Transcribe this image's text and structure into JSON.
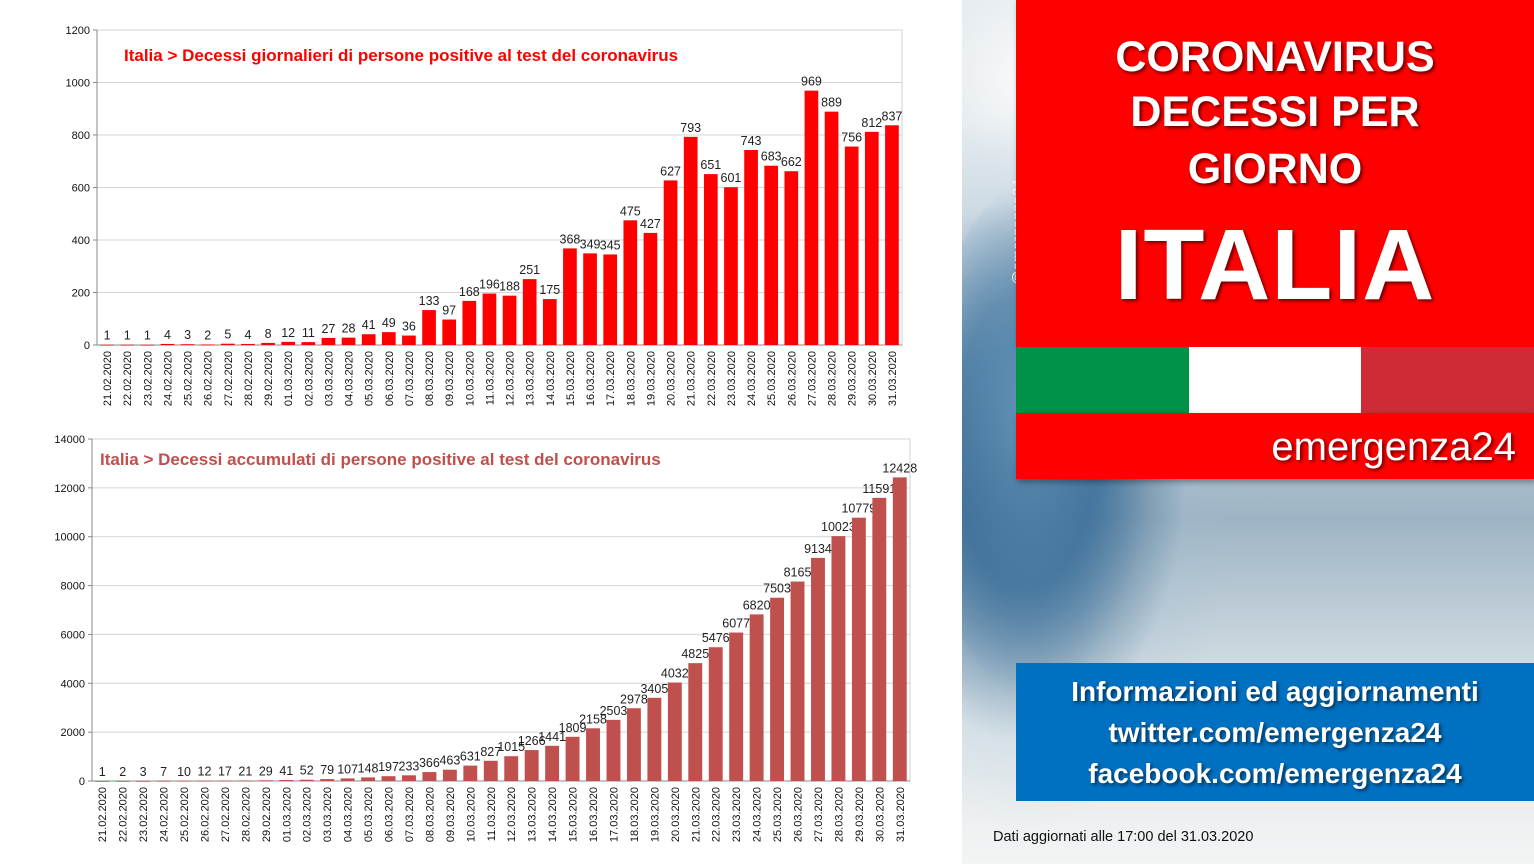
{
  "chart_data": [
    {
      "type": "bar",
      "title": "Italia > Decessi giornalieri di persone positive al test del coronavirus",
      "categories": [
        "21.02.2020",
        "22.02.2020",
        "23.02.2020",
        "24.02.2020",
        "25.02.2020",
        "26.02.2020",
        "27.02.2020",
        "28.02.2020",
        "29.02.2020",
        "01.03.2020",
        "02.03.2020",
        "03.03.2020",
        "04.03.2020",
        "05.03.2020",
        "06.03.2020",
        "07.03.2020",
        "08.03.2020",
        "09.03.2020",
        "10.03.2020",
        "11.03.2020",
        "12.03.2020",
        "13.03.2020",
        "14.03.2020",
        "15.03.2020",
        "16.03.2020",
        "17.03.2020",
        "18.03.2020",
        "19.03.2020",
        "20.03.2020",
        "21.03.2020",
        "22.03.2020",
        "23.03.2020",
        "24.03.2020",
        "25.03.2020",
        "26.03.2020",
        "27.03.2020",
        "28.03.2020",
        "29.03.2020",
        "30.03.2020",
        "31.03.2020"
      ],
      "values": [
        1,
        1,
        1,
        4,
        3,
        2,
        5,
        4,
        8,
        12,
        11,
        27,
        28,
        41,
        49,
        36,
        133,
        97,
        168,
        196,
        188,
        251,
        175,
        368,
        349,
        345,
        475,
        427,
        627,
        793,
        651,
        601,
        743,
        683,
        662,
        969,
        889,
        756,
        812,
        837
      ],
      "ylim": [
        0,
        1200
      ],
      "yticks": [
        0,
        200,
        400,
        600,
        800,
        1000,
        1200
      ],
      "color": "#fe0000",
      "title_color": "#fe0000",
      "grid": true
    },
    {
      "type": "bar",
      "title": "Italia > Decessi accumulati di persone positive al test del coronavirus",
      "categories": [
        "21.02.2020",
        "22.02.2020",
        "23.02.2020",
        "24.02.2020",
        "25.02.2020",
        "26.02.2020",
        "27.02.2020",
        "28.02.2020",
        "29.02.2020",
        "01.03.2020",
        "02.03.2020",
        "03.03.2020",
        "04.03.2020",
        "05.03.2020",
        "06.03.2020",
        "07.03.2020",
        "08.03.2020",
        "09.03.2020",
        "10.03.2020",
        "11.03.2020",
        "12.03.2020",
        "13.03.2020",
        "14.03.2020",
        "15.03.2020",
        "16.03.2020",
        "17.03.2020",
        "18.03.2020",
        "19.03.2020",
        "20.03.2020",
        "21.03.2020",
        "22.03.2020",
        "23.03.2020",
        "24.03.2020",
        "25.03.2020",
        "26.03.2020",
        "27.03.2020",
        "28.03.2020",
        "29.03.2020",
        "30.03.2020",
        "31.03.2020"
      ],
      "values": [
        1,
        2,
        3,
        7,
        10,
        12,
        17,
        21,
        29,
        41,
        52,
        79,
        107,
        148,
        197,
        233,
        366,
        463,
        631,
        827,
        1015,
        1266,
        1441,
        1809,
        2158,
        2503,
        2978,
        3405,
        4032,
        4825,
        5476,
        6077,
        6820,
        7503,
        8165,
        9134,
        10023,
        10779,
        11591,
        12428
      ],
      "ylim": [
        0,
        14000
      ],
      "yticks": [
        0,
        2000,
        4000,
        6000,
        8000,
        10000,
        12000,
        14000
      ],
      "color": "#c0504d",
      "title_color": "#c0504d",
      "grid": true
    }
  ],
  "panel": {
    "title_line1": "CORONAVIRUS",
    "title_line2": "DECESSI PER",
    "title_line3": "GIORNO",
    "title_country": "ITALIA",
    "brand": "emergenza24",
    "watermark": "@emergenza24",
    "info_line1": "Informazioni ed aggiornamenti",
    "info_line2": "twitter.com/emergenza24",
    "info_line3": "facebook.com/emergenza24",
    "update_note": "Dati aggiornati alle 17:00 del 31.03.2020",
    "flag_colors": [
      "#009246",
      "#ffffff",
      "#ce2b37"
    ]
  }
}
